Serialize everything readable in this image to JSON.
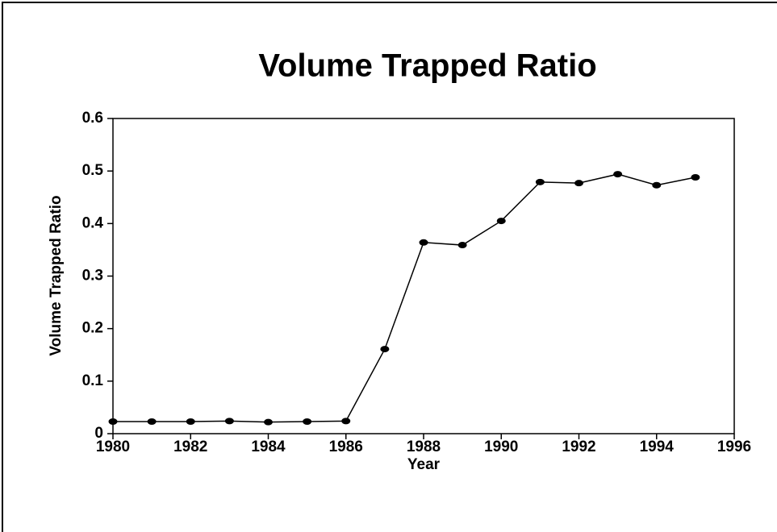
{
  "chart_data": {
    "type": "line",
    "title": "Volume Trapped Ratio",
    "xlabel": "Year",
    "ylabel": "Volume Trapped Ratio",
    "x": [
      1980,
      1981,
      1982,
      1983,
      1984,
      1985,
      1986,
      1987,
      1988,
      1989,
      1990,
      1991,
      1992,
      1993,
      1994,
      1995
    ],
    "series": [
      {
        "name": "Volume Trapped Ratio",
        "color": "#000000",
        "values": [
          0.023,
          0.023,
          0.023,
          0.024,
          0.022,
          0.023,
          0.024,
          0.161,
          0.364,
          0.359,
          0.405,
          0.479,
          0.477,
          0.494,
          0.473,
          0.488
        ]
      }
    ],
    "xlim": [
      1980,
      1996
    ],
    "xticks": [
      1980,
      1982,
      1984,
      1986,
      1988,
      1990,
      1992,
      1994,
      1996
    ],
    "ylim": [
      0,
      0.6
    ],
    "yticks": [
      0,
      0.1,
      0.2,
      0.3,
      0.4,
      0.5,
      0.6
    ],
    "grid": false
  }
}
